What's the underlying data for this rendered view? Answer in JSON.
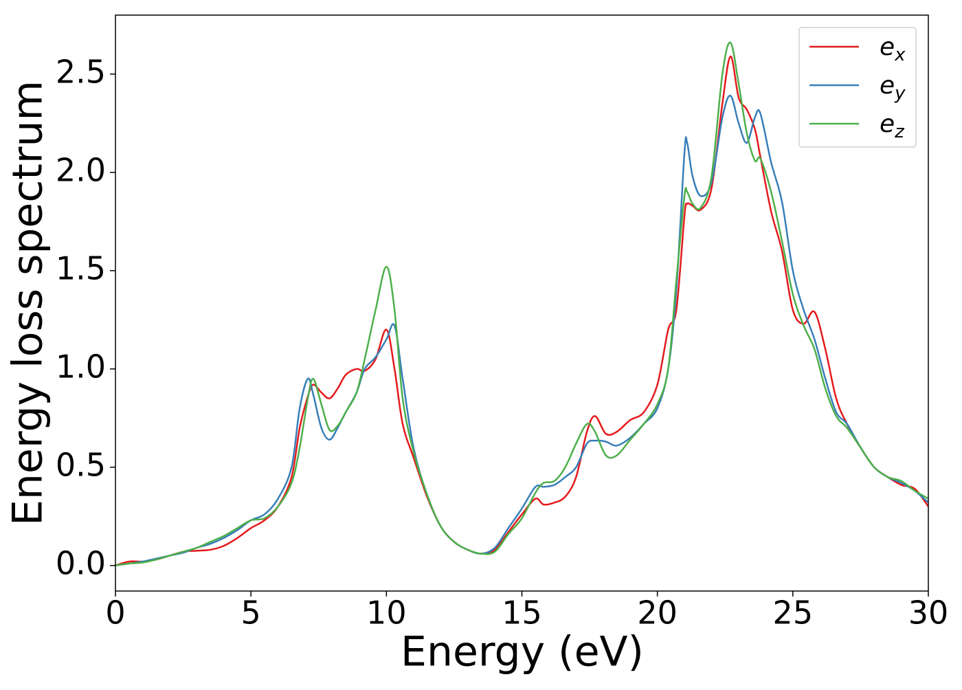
{
  "chart_data": {
    "type": "line",
    "xlabel": "Energy (eV)",
    "ylabel": "Energy loss spectrum",
    "x": [
      0,
      0.5,
      1,
      1.5,
      2,
      2.5,
      3,
      3.5,
      4,
      4.5,
      5,
      5.5,
      6,
      6.5,
      6.8,
      7.1,
      7.3,
      7.6,
      7.9,
      8.2,
      8.5,
      8.9,
      9.2,
      9.6,
      10,
      10.3,
      10.6,
      11,
      11.5,
      12,
      12.5,
      13,
      13.5,
      14,
      14.5,
      15,
      15.5,
      15.8,
      16.2,
      16.6,
      17,
      17.4,
      17.7,
      18.1,
      18.5,
      19,
      19.5,
      20,
      20.4,
      20.7,
      21.0,
      21.1,
      21.3,
      21.6,
      22,
      22.4,
      22.7,
      23,
      23.3,
      23.6,
      23.8,
      24.2,
      24.6,
      25,
      25.4,
      25.8,
      26.2,
      26.6,
      27,
      27.5,
      28,
      28.5,
      29,
      29.5,
      30
    ],
    "series": [
      {
        "name": "e_x",
        "color": "#e41a1c",
        "values": [
          0.0,
          0.02,
          0.02,
          0.03,
          0.05,
          0.07,
          0.075,
          0.08,
          0.1,
          0.14,
          0.19,
          0.23,
          0.3,
          0.45,
          0.7,
          0.86,
          0.92,
          0.88,
          0.85,
          0.9,
          0.97,
          1.0,
          0.99,
          1.05,
          1.2,
          1.0,
          0.72,
          0.55,
          0.35,
          0.2,
          0.12,
          0.08,
          0.06,
          0.08,
          0.17,
          0.26,
          0.34,
          0.31,
          0.32,
          0.35,
          0.45,
          0.68,
          0.76,
          0.67,
          0.68,
          0.74,
          0.78,
          0.92,
          1.2,
          1.3,
          1.78,
          1.84,
          1.83,
          1.81,
          1.92,
          2.35,
          2.59,
          2.38,
          2.32,
          2.22,
          2.08,
          1.8,
          1.6,
          1.3,
          1.23,
          1.29,
          1.1,
          0.85,
          0.72,
          0.6,
          0.5,
          0.45,
          0.41,
          0.39,
          0.3
        ]
      },
      {
        "name": "e_y",
        "color": "#377eb8",
        "values": [
          0.0,
          0.01,
          0.02,
          0.035,
          0.05,
          0.065,
          0.09,
          0.11,
          0.14,
          0.18,
          0.23,
          0.26,
          0.34,
          0.5,
          0.8,
          0.95,
          0.87,
          0.7,
          0.64,
          0.7,
          0.78,
          0.88,
          1.0,
          1.06,
          1.15,
          1.22,
          0.95,
          0.6,
          0.36,
          0.2,
          0.12,
          0.08,
          0.06,
          0.09,
          0.19,
          0.29,
          0.4,
          0.4,
          0.41,
          0.45,
          0.5,
          0.62,
          0.635,
          0.63,
          0.61,
          0.65,
          0.72,
          0.8,
          1.0,
          1.4,
          2.1,
          2.15,
          1.98,
          1.88,
          1.95,
          2.28,
          2.39,
          2.25,
          2.15,
          2.28,
          2.3,
          2.05,
          1.85,
          1.5,
          1.3,
          1.15,
          0.95,
          0.78,
          0.72,
          0.6,
          0.5,
          0.45,
          0.42,
          0.38,
          0.32
        ]
      },
      {
        "name": "e_z",
        "color": "#4daf4a",
        "values": [
          0.0,
          0.01,
          0.015,
          0.03,
          0.05,
          0.07,
          0.09,
          0.12,
          0.15,
          0.19,
          0.23,
          0.24,
          0.3,
          0.42,
          0.6,
          0.85,
          0.95,
          0.82,
          0.69,
          0.71,
          0.78,
          0.88,
          1.05,
          1.3,
          1.52,
          1.3,
          0.85,
          0.58,
          0.36,
          0.2,
          0.12,
          0.08,
          0.06,
          0.07,
          0.16,
          0.24,
          0.37,
          0.42,
          0.43,
          0.5,
          0.62,
          0.72,
          0.68,
          0.56,
          0.56,
          0.64,
          0.72,
          0.82,
          1.0,
          1.45,
          1.88,
          1.9,
          1.84,
          1.82,
          1.98,
          2.5,
          2.66,
          2.45,
          2.2,
          2.06,
          2.07,
          1.9,
          1.65,
          1.38,
          1.22,
          1.1,
          0.9,
          0.76,
          0.7,
          0.6,
          0.5,
          0.45,
          0.43,
          0.38,
          0.34
        ]
      }
    ],
    "xlim": [
      0,
      30
    ],
    "xticks": [
      0,
      5,
      10,
      15,
      20,
      25,
      30
    ],
    "ylim": [
      -0.13,
      2.8
    ],
    "yticks": [
      {
        "value": 0,
        "label": "0.0"
      },
      0.5,
      {
        "value": 1,
        "label": "1.0"
      },
      1.5,
      {
        "value": 2,
        "label": "2.0"
      },
      2.5
    ],
    "grid": false,
    "legend": "upper right"
  }
}
